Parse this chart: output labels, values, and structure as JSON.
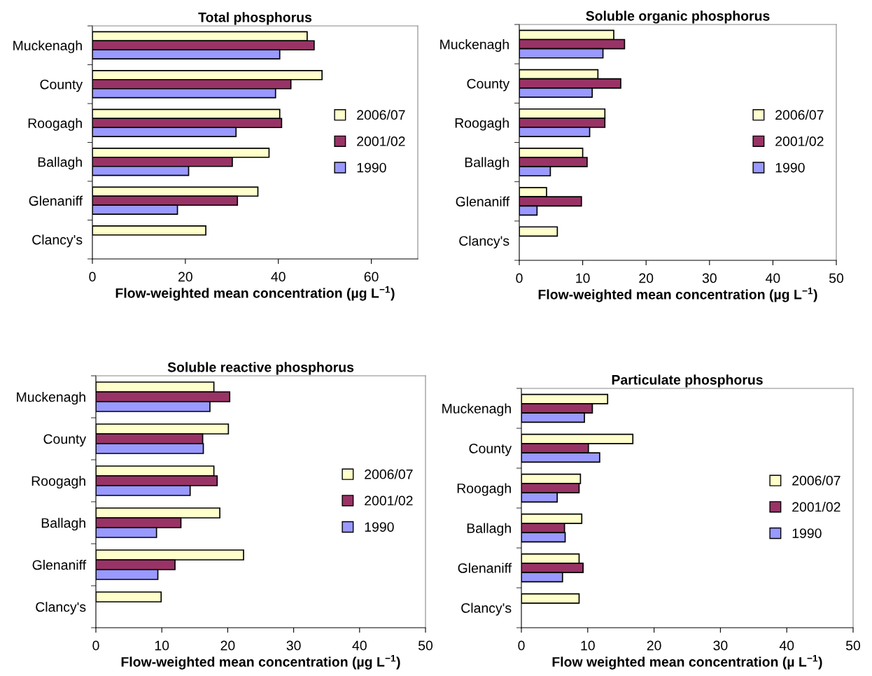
{
  "chart_data": [
    {
      "type": "bar",
      "orientation": "horizontal",
      "title": "Total phosphorus",
      "xlabel": "Flow-weighted mean concentration (µg L$^{−1}$)",
      "categories": [
        "Muckenagh",
        "County",
        "Roogagh",
        "Ballagh",
        "Glenaniff",
        "Clancy's"
      ],
      "xlim": [
        0,
        70
      ],
      "xticks": [
        0,
        20,
        40,
        60
      ],
      "legend": "right",
      "grid": false,
      "series": [
        {
          "name": "2006/07",
          "color": "#ffffcc",
          "values": [
            46.2,
            49.4,
            40.3,
            38.0,
            35.6,
            24.4
          ]
        },
        {
          "name": "2001/02",
          "color": "#993366",
          "values": [
            47.7,
            42.7,
            40.7,
            30.1,
            31.2,
            null
          ]
        },
        {
          "name": "1990",
          "color": "#9999ff",
          "values": [
            40.3,
            39.4,
            30.9,
            20.7,
            18.3,
            null
          ]
        }
      ]
    },
    {
      "type": "bar",
      "orientation": "horizontal",
      "title": "Soluble organic phosphorus",
      "xlabel": "Flow-weighted mean concentration (µg L$^{−1}$)",
      "categories": [
        "Muckenagh",
        "County",
        "Roogagh",
        "Ballagh",
        "Glenaniff",
        "Clancy's"
      ],
      "xlim": [
        0,
        50
      ],
      "xticks": [
        0,
        10,
        20,
        30,
        40,
        50
      ],
      "legend": "right",
      "grid": false,
      "series": [
        {
          "name": "2006/07",
          "color": "#ffffcc",
          "values": [
            14.9,
            12.4,
            13.5,
            10.0,
            4.3,
            6.0
          ]
        },
        {
          "name": "2001/02",
          "color": "#993366",
          "values": [
            16.6,
            16.0,
            13.5,
            10.7,
            9.8,
            null
          ]
        },
        {
          "name": "1990",
          "color": "#9999ff",
          "values": [
            13.2,
            11.5,
            11.1,
            4.9,
            2.8,
            null
          ]
        }
      ]
    },
    {
      "type": "bar",
      "orientation": "horizontal",
      "title": "Soluble reactive phosphorus",
      "xlabel": "Flow-weighted mean concentration (µg L$^{−1}$)",
      "categories": [
        "Muckenagh",
        "County",
        "Roogagh",
        "Ballagh",
        "Glenaniff",
        "Clancy's"
      ],
      "xlim": [
        0,
        50
      ],
      "xticks": [
        0,
        10,
        20,
        30,
        40,
        50
      ],
      "legend": "right",
      "grid": false,
      "series": [
        {
          "name": "2006/07",
          "color": "#ffffcc",
          "values": [
            17.9,
            20.1,
            17.9,
            18.8,
            22.4,
            9.9
          ]
        },
        {
          "name": "2001/02",
          "color": "#993366",
          "values": [
            20.3,
            16.2,
            18.4,
            12.9,
            12.0,
            null
          ]
        },
        {
          "name": "1990",
          "color": "#9999ff",
          "values": [
            17.3,
            16.3,
            14.3,
            9.2,
            9.4,
            null
          ]
        }
      ]
    },
    {
      "type": "bar",
      "orientation": "horizontal",
      "title": "Particulate phosphorus",
      "xlabel": "Flow weighted mean concentration (µ L$^{−1}$)",
      "categories": [
        "Muckenagh",
        "County",
        "Roogagh",
        "Ballagh",
        "Glenaniff",
        "Clancy's"
      ],
      "xlim": [
        0,
        50
      ],
      "xticks": [
        0,
        10,
        20,
        30,
        40,
        50
      ],
      "legend": "right",
      "grid": false,
      "series": [
        {
          "name": "2006/07",
          "color": "#ffffcc",
          "values": [
            13.0,
            16.8,
            8.9,
            9.1,
            8.7,
            8.7
          ]
        },
        {
          "name": "2001/02",
          "color": "#993366",
          "values": [
            10.7,
            10.1,
            8.7,
            6.5,
            9.3,
            null
          ]
        },
        {
          "name": "1990",
          "color": "#9999ff",
          "values": [
            9.5,
            11.8,
            5.4,
            6.6,
            6.2,
            null
          ]
        }
      ]
    }
  ]
}
